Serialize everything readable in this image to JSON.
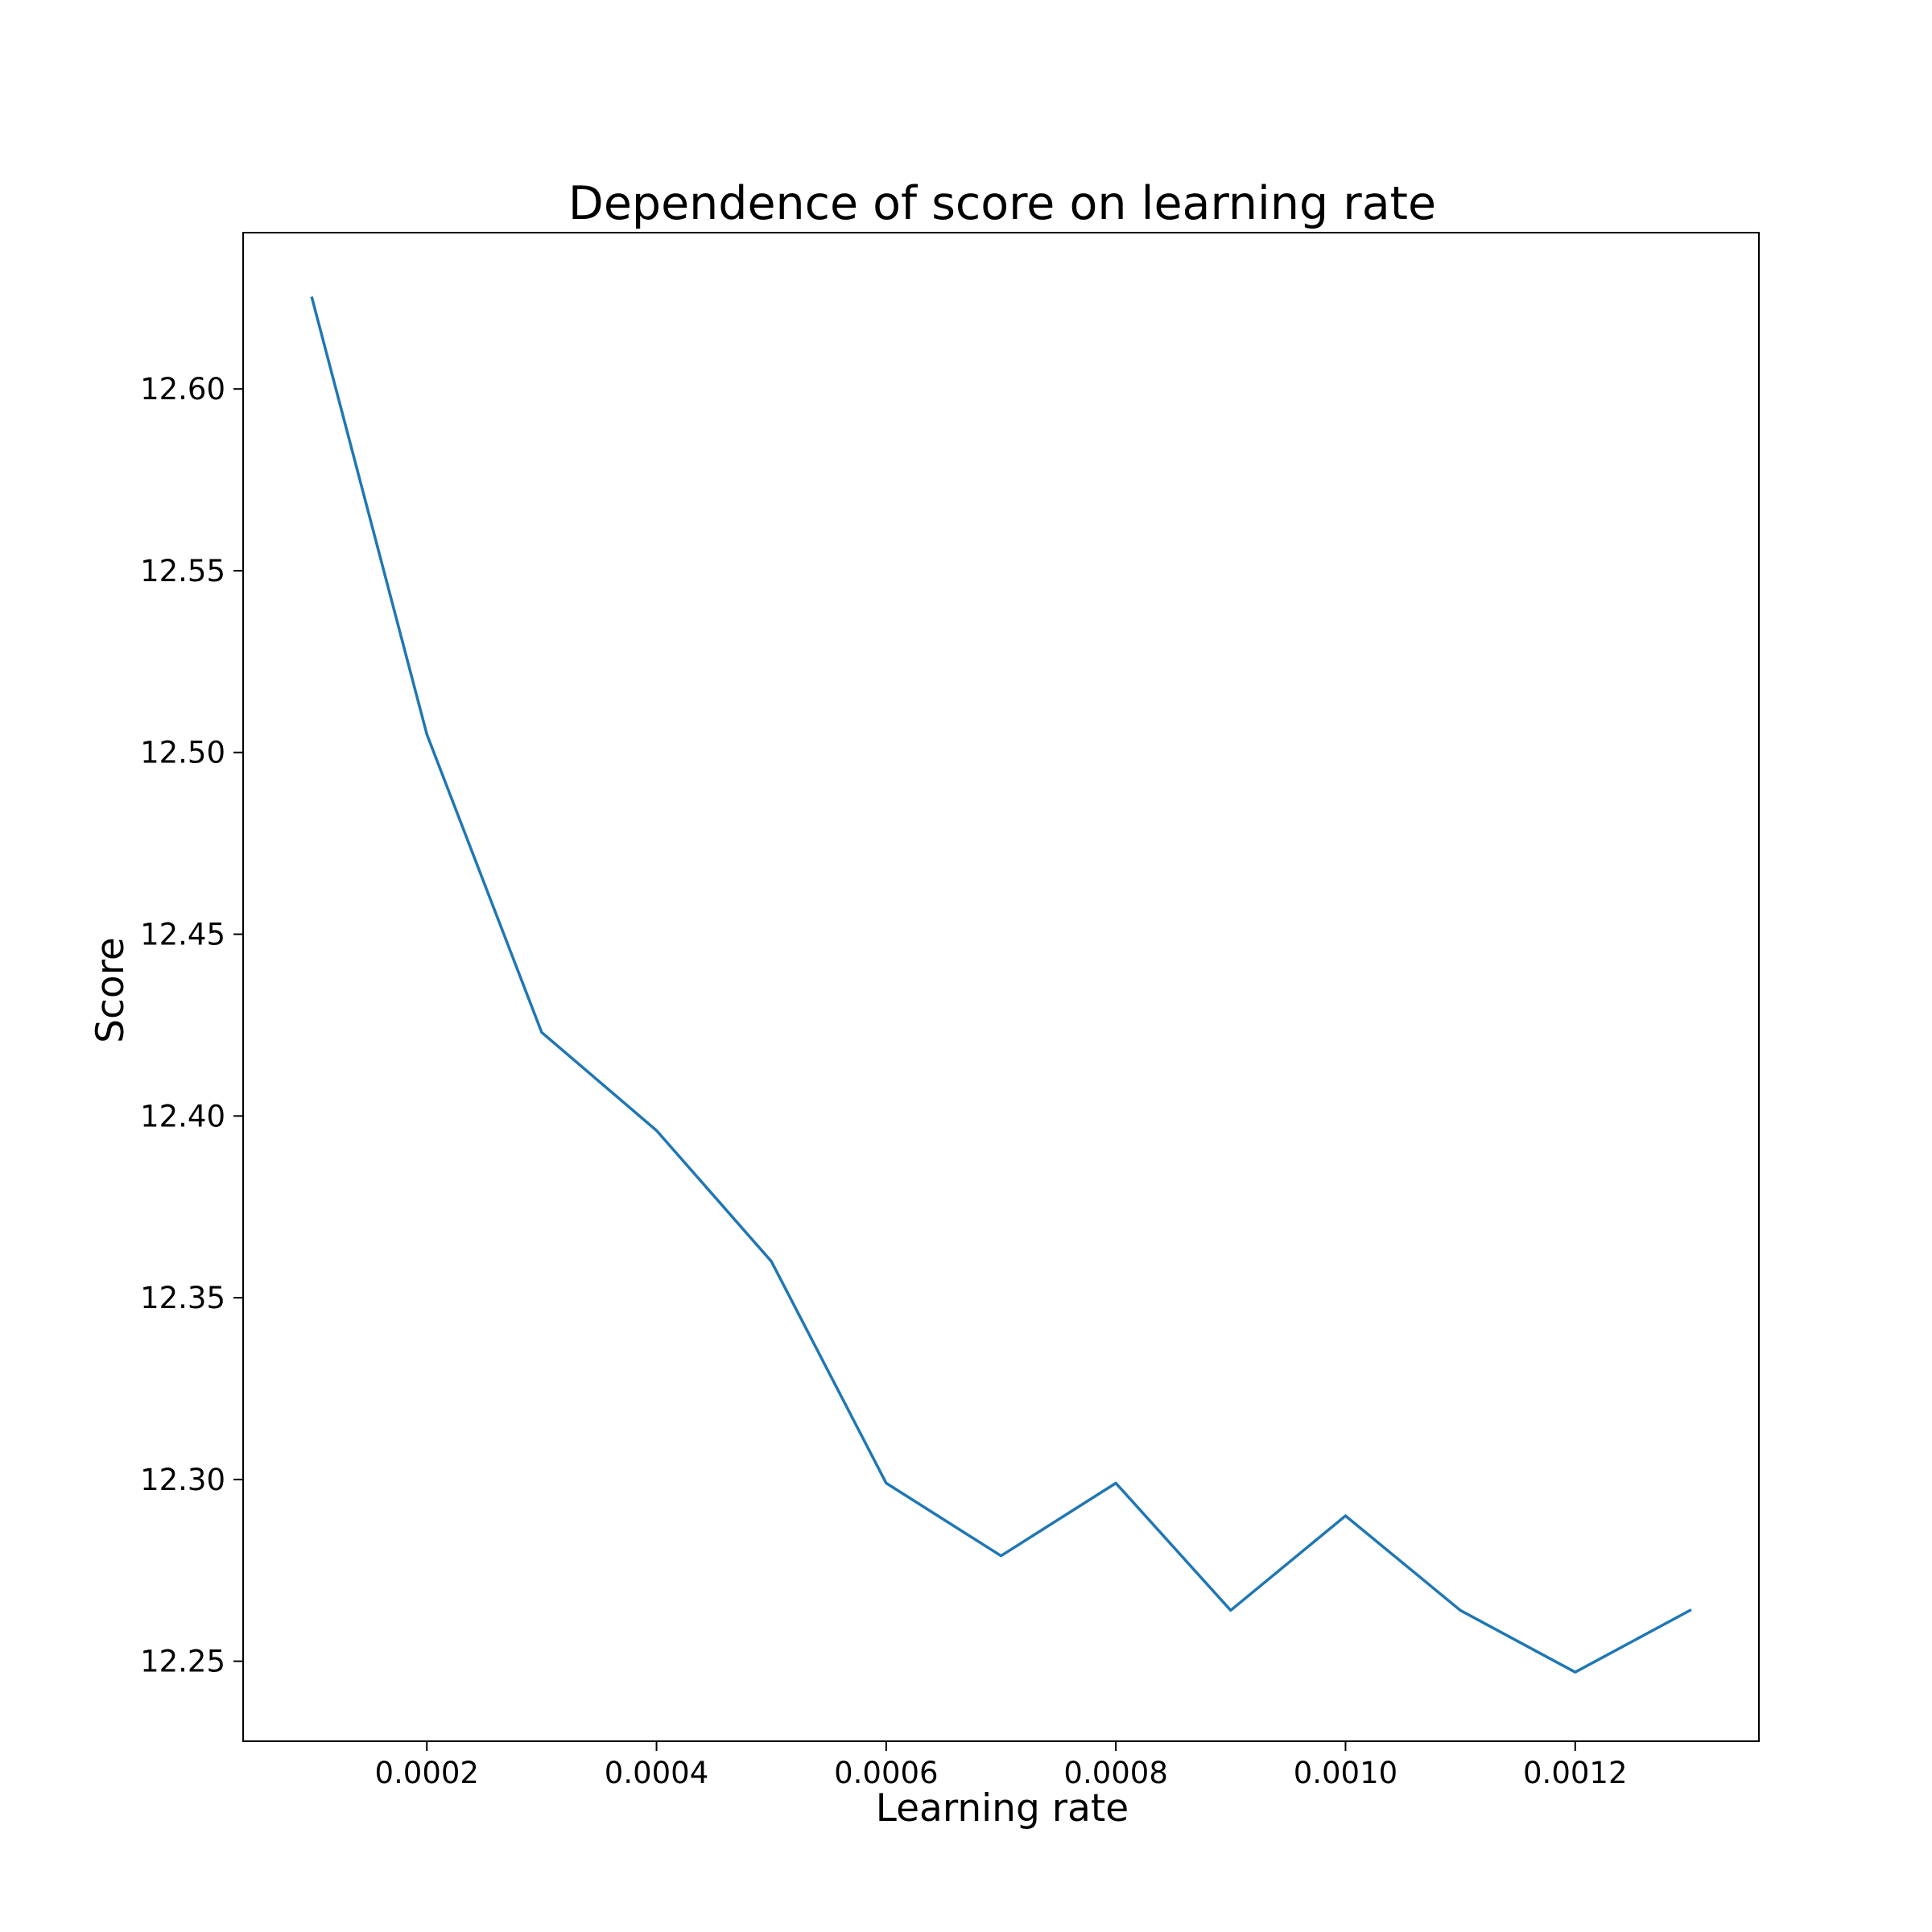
{
  "chart_data": {
    "type": "line",
    "title": "Dependence of score on learning rate",
    "xlabel": "Learning rate",
    "ylabel": "Score",
    "x": [
      0.0001,
      0.0002,
      0.0003,
      0.0004,
      0.0005,
      0.0006,
      0.0007,
      0.0008,
      0.0009,
      0.001,
      0.0011,
      0.0012,
      0.0013
    ],
    "series": [
      {
        "color": "#1f77b4",
        "values": [
          12.625,
          12.505,
          12.423,
          12.396,
          12.36,
          12.299,
          12.279,
          12.299,
          12.264,
          12.29,
          12.264,
          12.247,
          12.264
        ]
      }
    ],
    "xlim": [
      4e-05,
      0.00136
    ],
    "ylim": [
      12.228,
      12.643
    ],
    "xticks": [
      0.0002,
      0.0004,
      0.0006,
      0.0008,
      0.001,
      0.0012
    ],
    "xtick_labels": [
      "0.0002",
      "0.0004",
      "0.0006",
      "0.0008",
      "0.0010",
      "0.0012"
    ],
    "yticks": [
      12.25,
      12.3,
      12.35,
      12.4,
      12.45,
      12.5,
      12.55,
      12.6
    ],
    "ytick_labels": [
      "12.25",
      "12.30",
      "12.35",
      "12.40",
      "12.45",
      "12.50",
      "12.55",
      "12.60"
    ],
    "grid": false,
    "legend": "none"
  }
}
